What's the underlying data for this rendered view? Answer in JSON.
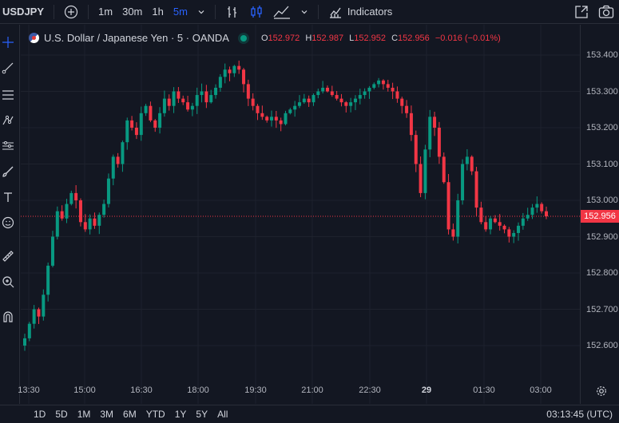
{
  "toolbar": {
    "symbol": "USDJPY",
    "intervals": [
      "1m",
      "30m",
      "1h",
      "5m"
    ],
    "active_interval": "5m",
    "indicators_label": "Indicators"
  },
  "legend": {
    "title": "U.S. Dollar / Japanese Yen · 5 · OANDA",
    "open_label": "O",
    "open": "152.972",
    "high_label": "H",
    "high": "152.987",
    "low_label": "L",
    "low": "152.952",
    "close_label": "C",
    "close": "152.956",
    "change": "−0.016 (−0.01%)"
  },
  "current_price": "152.956",
  "price_axis": [
    "153.400",
    "153.300",
    "153.200",
    "153.100",
    "153.000",
    "152.900",
    "152.800",
    "152.700",
    "152.600"
  ],
  "time_axis": [
    {
      "label": "13:30",
      "bold": false
    },
    {
      "label": "15:00",
      "bold": false
    },
    {
      "label": "16:30",
      "bold": false
    },
    {
      "label": "18:00",
      "bold": false
    },
    {
      "label": "19:30",
      "bold": false
    },
    {
      "label": "21:00",
      "bold": false
    },
    {
      "label": "22:30",
      "bold": false
    },
    {
      "label": "29",
      "bold": true
    },
    {
      "label": "01:30",
      "bold": false
    },
    {
      "label": "03:00",
      "bold": false
    }
  ],
  "ranges": [
    "1D",
    "5D",
    "1M",
    "3M",
    "6M",
    "YTD",
    "1Y",
    "5Y",
    "All"
  ],
  "clock": "03:13:45 (UTC)",
  "colors": {
    "up": "#089981",
    "down": "#f23645",
    "bg": "#131722",
    "accent": "#2962ff"
  },
  "left_tools": [
    "crosshair-icon",
    "trend-line-icon",
    "fib-icon",
    "pattern-icon",
    "projection-icon",
    "brush-icon",
    "text-icon",
    "emoji-icon",
    "ruler-icon",
    "zoom-icon",
    "magnet-icon"
  ],
  "chart_data": {
    "type": "candlestick",
    "ylim": [
      152.55,
      153.45
    ],
    "closes": [
      152.62,
      152.66,
      152.7,
      152.68,
      152.74,
      152.82,
      152.9,
      152.97,
      152.95,
      152.99,
      153.02,
      153.0,
      152.94,
      152.92,
      152.95,
      152.93,
      152.96,
      152.99,
      153.06,
      153.12,
      153.1,
      153.16,
      153.22,
      153.2,
      153.18,
      153.24,
      153.26,
      153.22,
      153.2,
      153.24,
      153.28,
      153.26,
      153.3,
      153.28,
      153.27,
      153.25,
      153.26,
      153.29,
      153.3,
      153.27,
      153.29,
      153.31,
      153.34,
      153.36,
      153.35,
      153.37,
      153.36,
      153.32,
      153.28,
      153.26,
      153.24,
      153.23,
      153.22,
      153.23,
      153.22,
      153.21,
      153.24,
      153.25,
      153.26,
      153.27,
      153.28,
      153.27,
      153.29,
      153.3,
      153.31,
      153.3,
      153.29,
      153.28,
      153.27,
      153.26,
      153.27,
      153.28,
      153.29,
      153.3,
      153.31,
      153.32,
      153.33,
      153.32,
      153.31,
      153.3,
      153.28,
      153.26,
      153.24,
      153.18,
      153.1,
      153.02,
      153.14,
      153.23,
      153.2,
      153.12,
      153.05,
      152.92,
      152.9,
      153.0,
      153.1,
      153.12,
      153.08,
      152.98,
      152.94,
      152.92,
      152.95,
      152.94,
      152.93,
      152.92,
      152.9,
      152.91,
      152.93,
      152.95,
      152.96,
      152.98,
      152.99,
      152.97,
      152.956
    ],
    "last_close": 152.956
  }
}
